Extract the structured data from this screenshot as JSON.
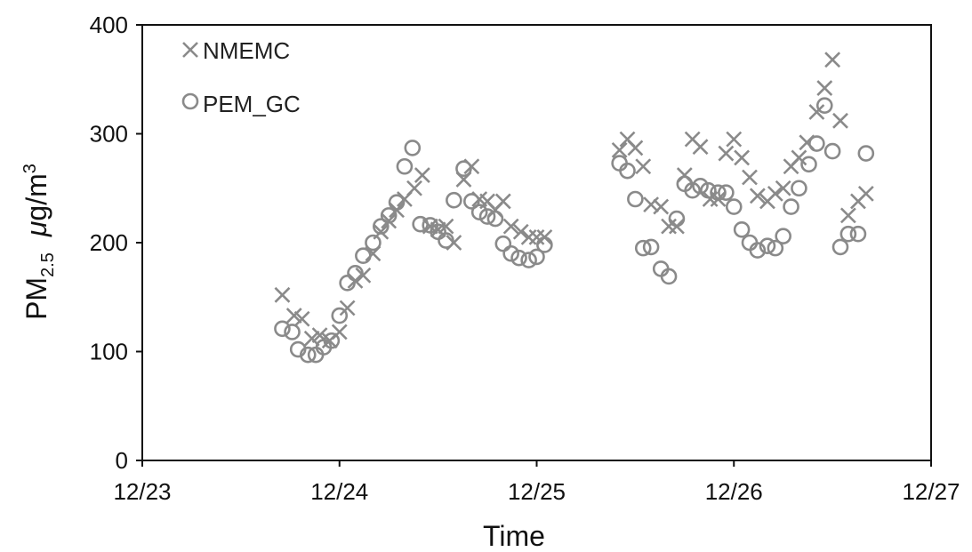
{
  "chart_data": {
    "type": "scatter",
    "title": "",
    "xlabel": "Time",
    "ylabel": {
      "main": "PM",
      "sub": "2.5",
      "unit_mu": "μ",
      "unit_base": "g/m",
      "unit_sup": "3"
    },
    "xlim": [
      0,
      4
    ],
    "ylim": [
      0,
      400
    ],
    "x_ticks": [
      {
        "value": 0,
        "label": "12/23"
      },
      {
        "value": 1,
        "label": "12/24"
      },
      {
        "value": 2,
        "label": "12/25"
      },
      {
        "value": 3,
        "label": "12/26"
      },
      {
        "value": 4,
        "label": "12/27"
      }
    ],
    "y_ticks": [
      {
        "value": 0,
        "label": "0"
      },
      {
        "value": 100,
        "label": "100"
      },
      {
        "value": 200,
        "label": "200"
      },
      {
        "value": 300,
        "label": "300"
      },
      {
        "value": 400,
        "label": "400"
      }
    ],
    "grid": false,
    "legend_position": "top-left",
    "colors": {
      "marker": "#8a8a8a",
      "axis": "#111111"
    },
    "series": [
      {
        "name": "NMEMC",
        "marker": "x",
        "points": [
          [
            0.71,
            152
          ],
          [
            0.77,
            133
          ],
          [
            0.81,
            130
          ],
          [
            0.86,
            112
          ],
          [
            0.9,
            115
          ],
          [
            0.95,
            110
          ],
          [
            1.0,
            118
          ],
          [
            1.04,
            140
          ],
          [
            1.08,
            165
          ],
          [
            1.12,
            170
          ],
          [
            1.17,
            190
          ],
          [
            1.21,
            210
          ],
          [
            1.25,
            220
          ],
          [
            1.29,
            230
          ],
          [
            1.33,
            240
          ],
          [
            1.38,
            250
          ],
          [
            1.42,
            262
          ],
          [
            1.46,
            215
          ],
          [
            1.5,
            212
          ],
          [
            1.54,
            215
          ],
          [
            1.58,
            200
          ],
          [
            1.63,
            258
          ],
          [
            1.67,
            270
          ],
          [
            1.71,
            240
          ],
          [
            1.75,
            238
          ],
          [
            1.79,
            230
          ],
          [
            1.83,
            238
          ],
          [
            1.87,
            215
          ],
          [
            1.92,
            210
          ],
          [
            1.96,
            205
          ],
          [
            2.0,
            205
          ],
          [
            2.04,
            205
          ],
          [
            2.42,
            285
          ],
          [
            2.46,
            295
          ],
          [
            2.5,
            287
          ],
          [
            2.54,
            270
          ],
          [
            2.58,
            235
          ],
          [
            2.63,
            233
          ],
          [
            2.67,
            215
          ],
          [
            2.71,
            215
          ],
          [
            2.75,
            262
          ],
          [
            2.79,
            295
          ],
          [
            2.83,
            288
          ],
          [
            2.88,
            240
          ],
          [
            2.92,
            240
          ],
          [
            2.96,
            282
          ],
          [
            3.0,
            295
          ],
          [
            3.04,
            278
          ],
          [
            3.08,
            260
          ],
          [
            3.12,
            243
          ],
          [
            3.17,
            238
          ],
          [
            3.21,
            245
          ],
          [
            3.25,
            250
          ],
          [
            3.29,
            270
          ],
          [
            3.33,
            278
          ],
          [
            3.37,
            292
          ],
          [
            3.42,
            320
          ],
          [
            3.46,
            342
          ],
          [
            3.5,
            368
          ],
          [
            3.54,
            312
          ],
          [
            3.58,
            225
          ],
          [
            3.63,
            238
          ],
          [
            3.67,
            245
          ]
        ]
      },
      {
        "name": "PEM_GC",
        "marker": "o",
        "points": [
          [
            0.71,
            121
          ],
          [
            0.76,
            118
          ],
          [
            0.79,
            102
          ],
          [
            0.84,
            97
          ],
          [
            0.88,
            97
          ],
          [
            0.92,
            104
          ],
          [
            0.96,
            110
          ],
          [
            1.0,
            133
          ],
          [
            1.04,
            163
          ],
          [
            1.08,
            172
          ],
          [
            1.12,
            188
          ],
          [
            1.17,
            200
          ],
          [
            1.21,
            215
          ],
          [
            1.25,
            225
          ],
          [
            1.29,
            237
          ],
          [
            1.33,
            270
          ],
          [
            1.37,
            287
          ],
          [
            1.41,
            217
          ],
          [
            1.46,
            216
          ],
          [
            1.5,
            210
          ],
          [
            1.54,
            202
          ],
          [
            1.58,
            239
          ],
          [
            1.63,
            268
          ],
          [
            1.67,
            238
          ],
          [
            1.71,
            228
          ],
          [
            1.75,
            224
          ],
          [
            1.79,
            222
          ],
          [
            1.83,
            199
          ],
          [
            1.87,
            190
          ],
          [
            1.91,
            186
          ],
          [
            1.96,
            184
          ],
          [
            2.0,
            187
          ],
          [
            2.04,
            198
          ],
          [
            2.42,
            273
          ],
          [
            2.46,
            266
          ],
          [
            2.5,
            240
          ],
          [
            2.54,
            195
          ],
          [
            2.58,
            196
          ],
          [
            2.63,
            176
          ],
          [
            2.67,
            169
          ],
          [
            2.71,
            222
          ],
          [
            2.75,
            254
          ],
          [
            2.79,
            248
          ],
          [
            2.83,
            252
          ],
          [
            2.87,
            248
          ],
          [
            2.92,
            246
          ],
          [
            2.96,
            246
          ],
          [
            3.0,
            233
          ],
          [
            3.04,
            212
          ],
          [
            3.08,
            200
          ],
          [
            3.12,
            193
          ],
          [
            3.17,
            197
          ],
          [
            3.21,
            195
          ],
          [
            3.25,
            206
          ],
          [
            3.29,
            233
          ],
          [
            3.33,
            250
          ],
          [
            3.38,
            272
          ],
          [
            3.42,
            291
          ],
          [
            3.46,
            326
          ],
          [
            3.5,
            284
          ],
          [
            3.54,
            196
          ],
          [
            3.58,
            208
          ],
          [
            3.63,
            208
          ],
          [
            3.67,
            282
          ]
        ]
      }
    ]
  }
}
